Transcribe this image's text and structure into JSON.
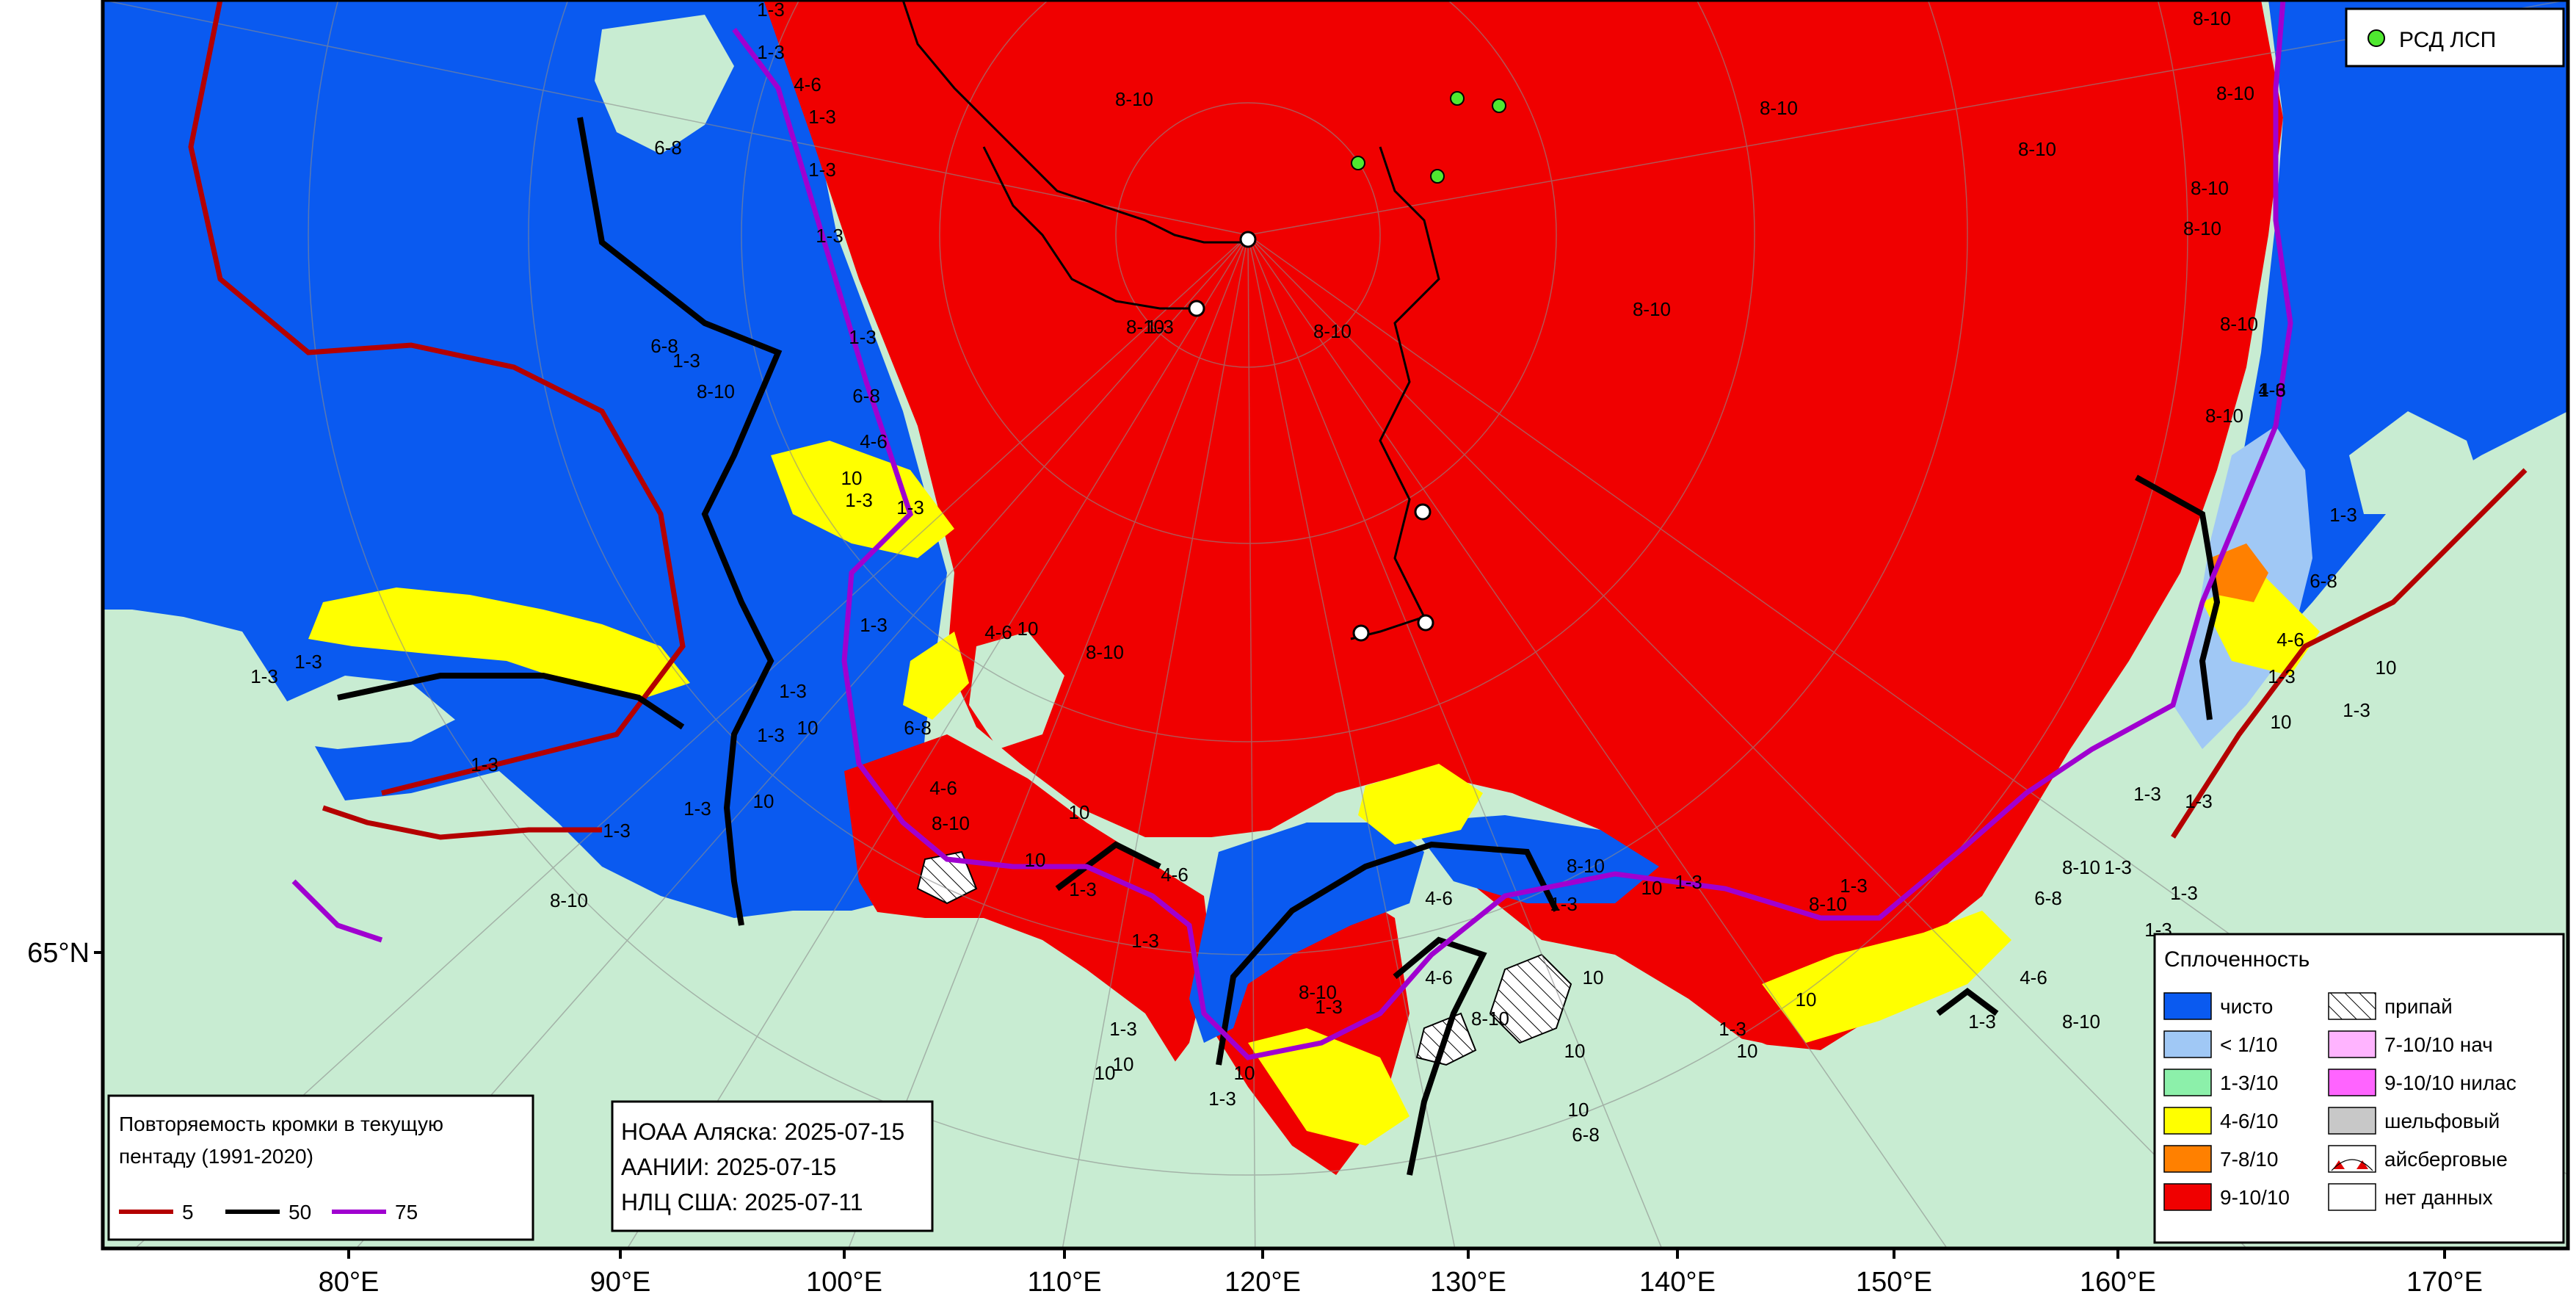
{
  "map": {
    "lon_ticks": [
      "80°E",
      "90°E",
      "100°E",
      "110°E",
      "120°E",
      "130°E",
      "140°E",
      "150°E",
      "160°E",
      "170°E"
    ],
    "lat_tick": "65°N",
    "colors": {
      "land": "#c8ecd2",
      "clear": "#0a5af0",
      "lt1": "#a0c8f5",
      "c13": "#8cf0aa",
      "c46": "#ffff00",
      "c78": "#ff8000",
      "c910": "#f00000",
      "nilas_710": "#ffb4ff",
      "nilas_910": "#ff64ff",
      "shelf": "#c8c8c8",
      "iso5": "#b40000",
      "iso50": "#000000",
      "iso75": "#a000d0"
    }
  },
  "rsd_legend": {
    "label": "РСД ЛСП"
  },
  "concentration_legend": {
    "title": "Сплоченность",
    "items": [
      {
        "label": "чисто",
        "color": "#0a5af0",
        "pattern": "solid"
      },
      {
        "label": "< 1/10",
        "color": "#a0c8f5",
        "pattern": "solid"
      },
      {
        "label": "1-3/10",
        "color": "#8cf0aa",
        "pattern": "solid"
      },
      {
        "label": "4-6/10",
        "color": "#ffff00",
        "pattern": "solid"
      },
      {
        "label": "7-8/10",
        "color": "#ff8000",
        "pattern": "solid"
      },
      {
        "label": "9-10/10",
        "color": "#f00000",
        "pattern": "solid"
      },
      {
        "label": "припай",
        "color": "#ffffff",
        "pattern": "hatch"
      },
      {
        "label": "7-10/10 нач",
        "color": "#ffb4ff",
        "pattern": "solid"
      },
      {
        "label": "9-10/10 нилас",
        "color": "#ff64ff",
        "pattern": "solid"
      },
      {
        "label": "шельфовый",
        "color": "#c8c8c8",
        "pattern": "solid"
      },
      {
        "label": "айсберговые",
        "color": "#ffffff",
        "pattern": "iceberg"
      },
      {
        "label": "нет данных",
        "color": "#ffffff",
        "pattern": "solid"
      }
    ]
  },
  "edge_legend": {
    "title_line1": "Повторяемость кромки в текущую",
    "title_line2": "пентаду (1991-2020)",
    "items": [
      {
        "label": "5",
        "color": "#b40000"
      },
      {
        "label": "50",
        "color": "#000000"
      },
      {
        "label": "75",
        "color": "#a000d0"
      }
    ]
  },
  "sources": {
    "line1": "НОАА Аляска: 2025-07-15",
    "line2": "ААНИИ: 2025-07-15",
    "line3": "НЛЦ США: 2025-07-11"
  },
  "region_labels": [
    "1-3",
    "1-3",
    "4-6",
    "1-3",
    "6-8",
    "8-10",
    "1-3",
    "1-3",
    "6-8",
    "1-3",
    "1-3",
    "4-6",
    "10",
    "6-8",
    "1-3",
    "1-3",
    "1-3",
    "1-3",
    "10",
    "1-3",
    "10",
    "1-3",
    "1-3",
    "1-3",
    "1-3",
    "1-3",
    "8-10",
    "4-6",
    "10",
    "6-8",
    "4-6",
    "8-10",
    "10",
    "10",
    "1-3",
    "4-6",
    "1-3",
    "10",
    "1-3",
    "10",
    "8-10",
    "1-3",
    "4-6",
    "1-3",
    "8-10",
    "10",
    "1-3",
    "4-6",
    "10",
    "8-10",
    "10",
    "1-3",
    "10",
    "6-8",
    "10",
    "8-10",
    "8-10",
    "1-3",
    "8-10",
    "8-10",
    "8-10",
    "8-10",
    "8-10",
    "8-10",
    "8-10",
    "8-10",
    "8-10",
    "8-10",
    "8-10",
    "1-3",
    "4-6",
    "1-3",
    "6-8",
    "4-6",
    "1-3",
    "1-3",
    "10",
    "1-3",
    "1-3",
    "8-10",
    "1-3",
    "6-8",
    "1-3",
    "1-3",
    "4-6",
    "1-3",
    "8-10",
    "10",
    "1-3",
    "8-10",
    "10",
    "1-3",
    "10",
    "6-8"
  ]
}
